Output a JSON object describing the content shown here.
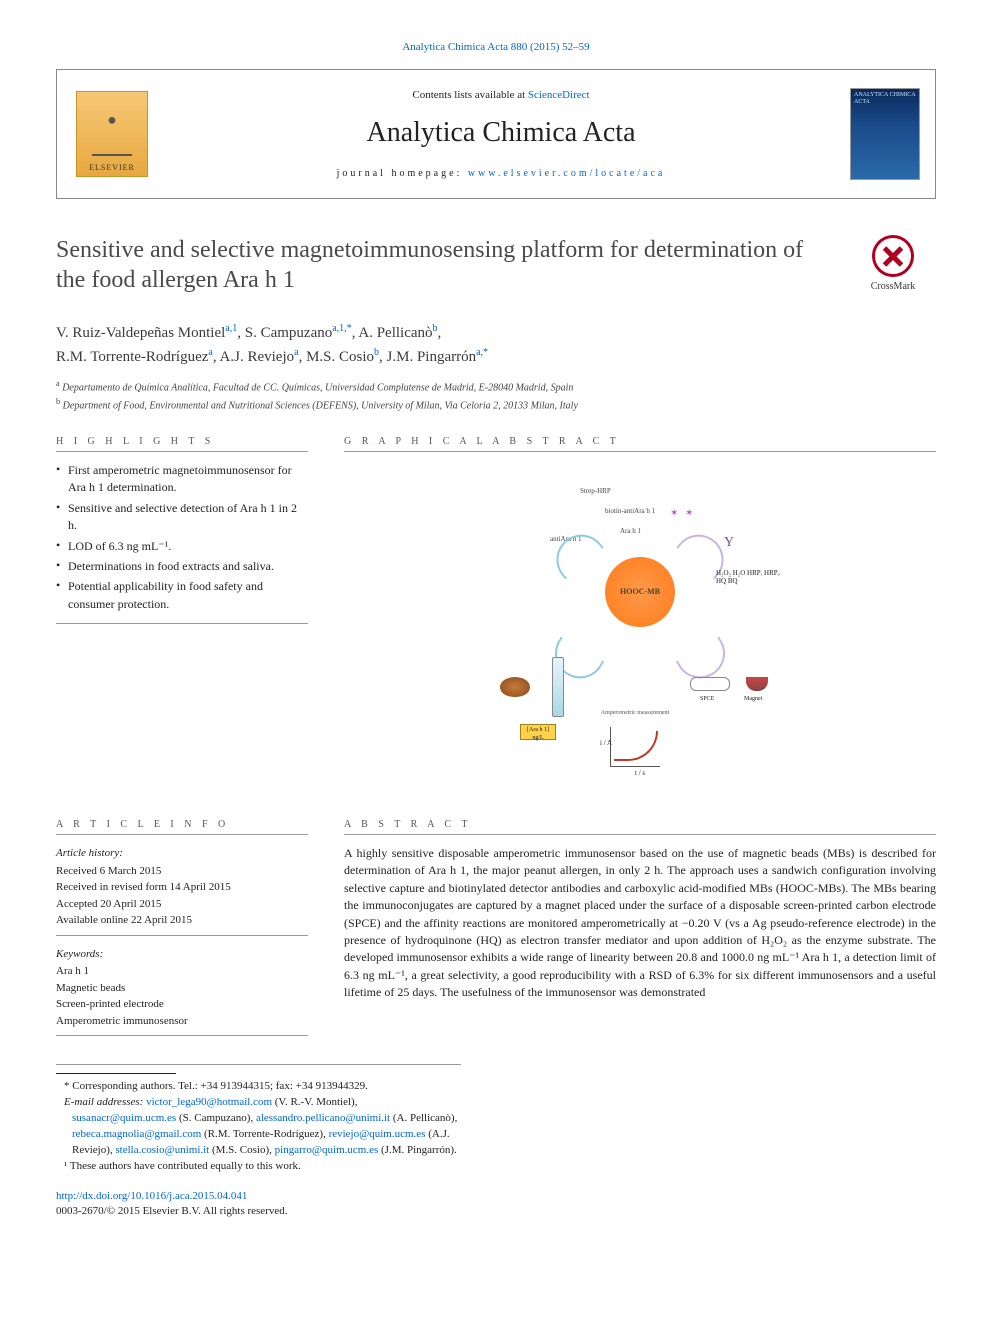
{
  "topCitation": {
    "prefix": "Analytica Chimica Acta 880 (2015) 52–59",
    "link": "Analytica Chimica Acta 880 (2015) 52–59"
  },
  "header": {
    "contentsPrefix": "Contents lists available at ",
    "contentsLink": "ScienceDirect",
    "journalName": "Analytica Chimica Acta",
    "homepagePrefix": "journal homepage: ",
    "homepageLink": "www.elsevier.com/locate/aca",
    "elsevierLabel": "ELSEVIER",
    "coverText": "ANALYTICA CHIMICA ACTA"
  },
  "crossmarkLabel": "CrossMark",
  "title": "Sensitive and selective magnetoimmunosensing platform for determination of the food allergen Ara h 1",
  "authors": [
    {
      "name": "V. Ruiz-Valdepeñas Montiel",
      "sup": "a,1"
    },
    {
      "name": "S. Campuzano",
      "sup": "a,1,*"
    },
    {
      "name": "A. Pellicanò",
      "sup": "b"
    },
    {
      "name": "R.M. Torrente-Rodríguez",
      "sup": "a"
    },
    {
      "name": "A.J. Reviejo",
      "sup": "a"
    },
    {
      "name": "M.S. Cosio",
      "sup": "b"
    },
    {
      "name": "J.M. Pingarrón",
      "sup": "a,*"
    }
  ],
  "affiliations": [
    {
      "sup": "a",
      "text": "Departamento de Química Analítica, Facultad de CC. Químicas, Universidad Complutense de Madrid, E-28040 Madrid, Spain"
    },
    {
      "sup": "b",
      "text": "Department of Food, Environmental and Nutritional Sciences (DEFENS), University of Milan, Via Celoria 2, 20133 Milan, Italy"
    }
  ],
  "sectionHeads": {
    "highlights": "H I G H L I G H T S",
    "graphical": "G R A P H I C A L  A B S T R A C T",
    "articleInfo": "A R T I C L E  I N F O",
    "abstract": "A B S T R A C T"
  },
  "highlights": [
    "First amperometric magnetoimmunosensor for Ara h 1 determination.",
    "Sensitive and selective detection of Ara h 1 in 2 h.",
    "LOD of 6.3 ng mL⁻¹.",
    "Determinations in food extracts and saliva.",
    "Potential applicability in food safety and consumer protection."
  ],
  "graphicalLabels": {
    "strep": "Strep-HRP",
    "biotin": "biotin-antiAra h 1",
    "ara": "Ara h 1",
    "antiara": "antiAra h 1",
    "hooc": "HOOC-MB",
    "box": "[Ara h 1] ng/L",
    "amp": "Amperometric measurement",
    "spce": "SPCE",
    "magnet": "Magnet",
    "react": "H₂O₂  H₂O\nHRPᵣ  HRPₒ\nHQ\nBQ",
    "axisY": "i / A",
    "axisX": "t / s"
  },
  "articleInfo": {
    "historyHead": "Article history:",
    "history": [
      "Received 6 March 2015",
      "Received in revised form 14 April 2015",
      "Accepted 20 April 2015",
      "Available online 22 April 2015"
    ],
    "keywordsHead": "Keywords:",
    "keywords": [
      "Ara h 1",
      "Magnetic beads",
      "Screen-printed electrode",
      "Amperometric immunosensor"
    ]
  },
  "abstract": "A highly sensitive disposable amperometric immunosensor based on the use of magnetic beads (MBs) is described for determination of Ara h 1, the major peanut allergen, in only 2 h. The approach uses a sandwich configuration involving selective capture and biotinylated detector antibodies and carboxylic acid-modified MBs (HOOC-MBs). The MBs bearing the immunoconjugates are captured by a magnet placed under the surface of a disposable screen-printed carbon electrode (SPCE) and the affinity reactions are monitored amperometrically at −0.20 V (vs a Ag pseudo-reference electrode) in the presence of hydroquinone (HQ) as electron transfer mediator and upon addition of H₂O₂ as the enzyme substrate. The developed immunosensor exhibits a wide range of linearity between 20.8 and 1000.0 ng mL⁻¹ Ara h 1, a detection limit of 6.3 ng mL⁻¹, a great selectivity, a good reproducibility with a RSD of 6.3% for six different immunosensors and a useful lifetime of 25 days. The usefulness of the immunosensor was demonstrated",
  "footnotes": {
    "corresponding": "* Corresponding authors. Tel.: +34 913944315; fax: +34 913944329.",
    "emailsLabel": "E-mail addresses:",
    "emails": [
      {
        "email": "victor_lega90@hotmail.com",
        "who": "(V. R.-V. Montiel)"
      },
      {
        "email": "susanacr@quim.ucm.es",
        "who": "(S. Campuzano)"
      },
      {
        "email": "alessandro.pellicano@unimi.it",
        "who": "(A. Pellicanò)"
      },
      {
        "email": "rebeca.magnolia@gmail.com",
        "who": "(R.M. Torrente-Rodríguez)"
      },
      {
        "email": "reviejo@quim.ucm.es",
        "who": "(A.J. Reviejo)"
      },
      {
        "email": "stella.cosio@unimi.it",
        "who": "(M.S. Cosio)"
      },
      {
        "email": "pingarro@quim.ucm.es",
        "who": "(J.M. Pingarrón)."
      }
    ],
    "equal": "¹ These authors have contributed equally to this work."
  },
  "doi": {
    "link": "http://dx.doi.org/10.1016/j.aca.2015.04.041",
    "copyright": "0003-2670/© 2015 Elsevier B.V. All rights reserved."
  }
}
